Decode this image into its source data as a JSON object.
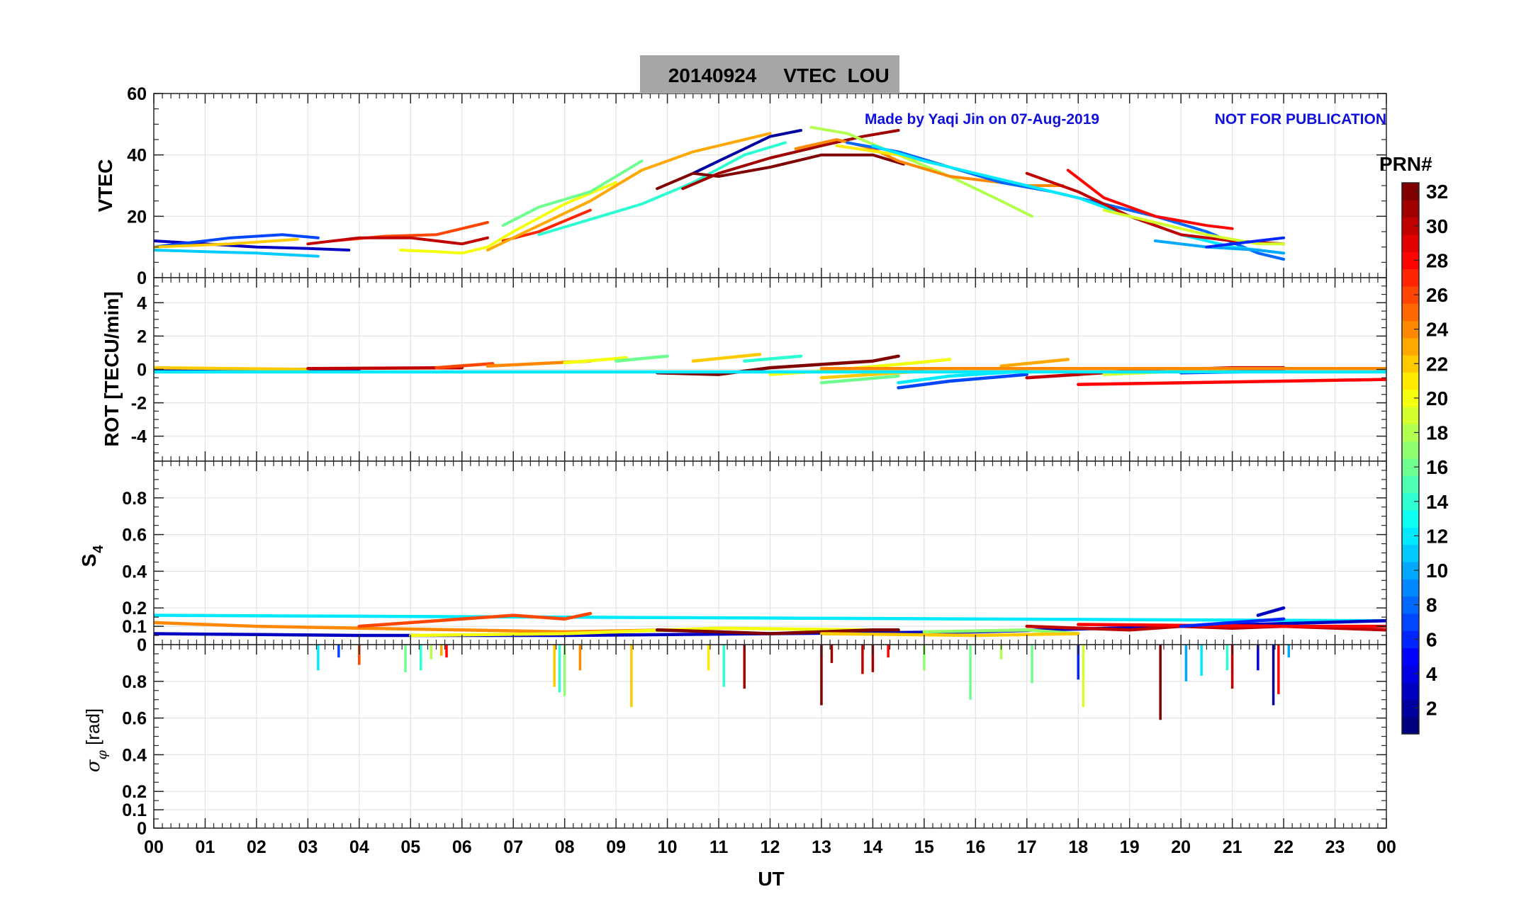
{
  "title": {
    "date": "20140924",
    "text": "VTEC  LOU",
    "bg": "#a6a6a6"
  },
  "credit": {
    "author": "Made by Yaqi Jin on 07-Aug-2019",
    "notice": "NOT FOR PUBLICATION",
    "color": "#1010dd"
  },
  "xaxis": {
    "label": "UT",
    "ticks": [
      "00",
      "01",
      "02",
      "03",
      "04",
      "05",
      "06",
      "07",
      "08",
      "09",
      "10",
      "11",
      "12",
      "13",
      "14",
      "15",
      "16",
      "17",
      "18",
      "19",
      "20",
      "21",
      "22",
      "23",
      "00"
    ],
    "range": [
      0,
      24
    ]
  },
  "colorbar": {
    "label": "PRN#",
    "ticks": [
      "2",
      "4",
      "6",
      "8",
      "10",
      "12",
      "14",
      "16",
      "18",
      "20",
      "22",
      "24",
      "26",
      "28",
      "30",
      "32"
    ],
    "range": [
      1,
      32
    ],
    "colormap": "jet"
  },
  "chart_data": [
    {
      "type": "line",
      "panel": "vtec",
      "ylabel": "VTEC",
      "ylim": [
        0,
        60
      ],
      "yticks": [
        0,
        20,
        40,
        60
      ],
      "ytick_labels": [
        "0",
        "20",
        "40",
        "60"
      ],
      "grid": true,
      "series": [
        {
          "prn": 3,
          "x": [
            0.0,
            1.0,
            2.0,
            3.0,
            3.8
          ],
          "y": [
            12,
            11,
            10,
            9.5,
            9
          ]
        },
        {
          "prn": 7,
          "x": [
            0.0,
            1.5,
            2.5,
            3.2
          ],
          "y": [
            10,
            13,
            14,
            13
          ]
        },
        {
          "prn": 11,
          "x": [
            0.0,
            1.0,
            2.0,
            3.2
          ],
          "y": [
            9,
            8.5,
            8,
            7
          ]
        },
        {
          "prn": 22,
          "x": [
            0.0,
            1.5,
            2.8
          ],
          "y": [
            10,
            11,
            12.5
          ]
        },
        {
          "prn": 26,
          "x": [
            3.5,
            4.5,
            5.5,
            6.5
          ],
          "y": [
            12,
            13.5,
            14,
            18
          ]
        },
        {
          "prn": 30,
          "x": [
            3.0,
            4.0,
            5.0,
            6.0,
            6.5
          ],
          "y": [
            11,
            13,
            13,
            11,
            13
          ]
        },
        {
          "prn": 20,
          "x": [
            4.8,
            5.5,
            6.0,
            6.5,
            7.0,
            8.0,
            9.0
          ],
          "y": [
            9,
            8.5,
            8,
            10,
            15,
            24,
            31
          ]
        },
        {
          "prn": 16,
          "x": [
            6.8,
            7.5,
            8.5,
            9.5
          ],
          "y": [
            17,
            23,
            28,
            38
          ]
        },
        {
          "prn": 27,
          "x": [
            6.8,
            7.5,
            8.5
          ],
          "y": [
            12,
            15,
            22
          ]
        },
        {
          "prn": 14,
          "x": [
            7.5,
            8.5,
            9.5,
            10.5,
            11.5,
            12.3
          ],
          "y": [
            14,
            19,
            24,
            31,
            40,
            44
          ]
        },
        {
          "prn": 23,
          "x": [
            6.5,
            7.5,
            8.5,
            9.5,
            10.5,
            11.5,
            12.0
          ],
          "y": [
            9,
            17,
            25,
            35,
            41,
            45,
            47
          ]
        },
        {
          "prn": 2,
          "x": [
            10.5,
            11.0,
            11.5,
            12.0,
            12.6
          ],
          "y": [
            34,
            38,
            42,
            46,
            48
          ]
        },
        {
          "prn": 32,
          "x": [
            9.8,
            10.5,
            11.0,
            12.0,
            13.0,
            14.0,
            14.6
          ],
          "y": [
            29,
            34,
            33,
            36,
            40,
            40,
            37
          ]
        },
        {
          "prn": 31,
          "x": [
            10.3,
            11.0,
            12.0,
            13.0,
            13.8,
            14.5
          ],
          "y": [
            29,
            34,
            39,
            43,
            46,
            48
          ]
        },
        {
          "prn": 18,
          "x": [
            12.8,
            13.5,
            14.5,
            15.5,
            16.5,
            17.1
          ],
          "y": [
            49,
            47,
            40,
            33,
            25,
            20
          ]
        },
        {
          "prn": 24,
          "x": [
            12.5,
            13.3,
            14.0,
            14.5,
            15.5,
            17.0,
            17.7
          ],
          "y": [
            42,
            45,
            42,
            38,
            33,
            30,
            30
          ]
        },
        {
          "prn": 8,
          "x": [
            13.5,
            14.5,
            15.5,
            16.5,
            17.5,
            18.5,
            19.5,
            20.5,
            21.5,
            22.0
          ],
          "y": [
            44,
            41,
            36,
            31,
            28,
            24,
            20,
            15,
            8,
            6
          ]
        },
        {
          "prn": 21,
          "x": [
            13.3,
            14.5,
            15.5
          ],
          "y": [
            43,
            40,
            36
          ]
        },
        {
          "prn": 12,
          "x": [
            14.0,
            15.0,
            16.0,
            17.0,
            18.0,
            19.0,
            20.0,
            21.0,
            22.0
          ],
          "y": [
            43,
            38,
            34,
            30,
            26,
            20,
            14,
            10,
            8
          ]
        },
        {
          "prn": 30,
          "x": [
            17.0,
            18.0,
            19.0,
            20.0,
            21.0,
            22.0
          ],
          "y": [
            34,
            28,
            20,
            14,
            12,
            11
          ]
        },
        {
          "prn": 28,
          "x": [
            17.8,
            18.5,
            19.5,
            20.5,
            21.0
          ],
          "y": [
            35,
            26,
            20,
            17,
            16
          ]
        },
        {
          "prn": 19,
          "x": [
            18.5,
            19.5,
            20.5,
            21.5,
            22.0
          ],
          "y": [
            22,
            18,
            14,
            11,
            11
          ]
        },
        {
          "prn": 10,
          "x": [
            19.5,
            20.5,
            21.5,
            22.0
          ],
          "y": [
            12,
            10,
            9,
            8
          ]
        },
        {
          "prn": 6,
          "x": [
            20.5,
            21.5,
            22.0
          ],
          "y": [
            10,
            12,
            13
          ]
        }
      ]
    },
    {
      "type": "line",
      "panel": "rot",
      "ylabel": "ROT [TECU/min]",
      "ylim": [
        -5.5,
        5.5
      ],
      "yticks": [
        -4,
        -2,
        0,
        2,
        4
      ],
      "ytick_labels": [
        "-4",
        "-2",
        "0",
        "2",
        "4"
      ],
      "grid": true,
      "series": [
        {
          "prn": 3,
          "x": [
            0,
            4
          ],
          "y": [
            0.0,
            0.0
          ]
        },
        {
          "prn": 22,
          "x": [
            0,
            3
          ],
          "y": [
            0.1,
            0.0
          ]
        },
        {
          "prn": 30,
          "x": [
            3,
            6
          ],
          "y": [
            0.05,
            0.1
          ]
        },
        {
          "prn": 26,
          "x": [
            5.5,
            6.6
          ],
          "y": [
            0.1,
            0.35
          ]
        },
        {
          "prn": 24,
          "x": [
            6.5,
            8.5
          ],
          "y": [
            0.2,
            0.5
          ]
        },
        {
          "prn": 20,
          "x": [
            8.0,
            9.2
          ],
          "y": [
            0.4,
            0.7
          ]
        },
        {
          "prn": 16,
          "x": [
            9.0,
            10.0
          ],
          "y": [
            0.5,
            0.8
          ]
        },
        {
          "prn": 22,
          "x": [
            10.5,
            11.8
          ],
          "y": [
            0.5,
            0.9
          ]
        },
        {
          "prn": 14,
          "x": [
            11.5,
            12.6
          ],
          "y": [
            0.5,
            0.8
          ]
        },
        {
          "prn": 32,
          "x": [
            9.8,
            11.0,
            12.0,
            13.0,
            14.0,
            14.5
          ],
          "y": [
            -0.2,
            -0.3,
            0.1,
            0.3,
            0.5,
            0.8
          ]
        },
        {
          "prn": 20,
          "x": [
            12.0,
            13.0,
            14.5,
            15.5
          ],
          "y": [
            -0.3,
            -0.1,
            0.3,
            0.6
          ]
        },
        {
          "prn": 22,
          "x": [
            13.0,
            14.0,
            15.0
          ],
          "y": [
            -0.5,
            -0.3,
            -0.1
          ]
        },
        {
          "prn": 16,
          "x": [
            13.0,
            14.5
          ],
          "y": [
            -0.8,
            -0.4
          ]
        },
        {
          "prn": 12,
          "x": [
            14.5,
            15.5,
            17.0
          ],
          "y": [
            -0.8,
            -0.4,
            -0.1
          ]
        },
        {
          "prn": 7,
          "x": [
            14.5,
            15.5,
            17.0
          ],
          "y": [
            -1.1,
            -0.7,
            -0.3
          ]
        },
        {
          "prn": 23,
          "x": [
            16.5,
            17.8
          ],
          "y": [
            0.2,
            0.6
          ]
        },
        {
          "prn": 30,
          "x": [
            17.0,
            18.0,
            19.0,
            20.0,
            21.0,
            22.0
          ],
          "y": [
            -0.5,
            -0.3,
            -0.1,
            0.0,
            0.1,
            0.1
          ]
        },
        {
          "prn": 28,
          "x": [
            18.0,
            22.0,
            24.0
          ],
          "y": [
            -0.9,
            -0.7,
            -0.6
          ]
        },
        {
          "prn": 19,
          "x": [
            18.5,
            20.0,
            22.0
          ],
          "y": [
            -0.3,
            -0.1,
            0.0
          ]
        },
        {
          "prn": 6,
          "x": [
            20.0,
            22.0
          ],
          "y": [
            -0.2,
            -0.1
          ]
        },
        {
          "prn": 12,
          "x": [
            0,
            24
          ],
          "y": [
            -0.15,
            -0.15
          ]
        },
        {
          "prn": 24,
          "x": [
            13,
            24
          ],
          "y": [
            0.05,
            0.05
          ]
        }
      ]
    },
    {
      "type": "line",
      "panel": "s4",
      "ylabel": "S4",
      "ylim": [
        0,
        1.0
      ],
      "yticks": [
        0,
        0.1,
        0.2,
        0.4,
        0.6,
        0.8
      ],
      "ytick_labels": [
        "0",
        "0.1",
        "0.2",
        "0.4",
        "0.6",
        "0.8"
      ],
      "grid": true,
      "series": [
        {
          "prn": 12,
          "x": [
            0,
            24
          ],
          "y": [
            0.16,
            0.13
          ]
        },
        {
          "prn": 3,
          "x": [
            0,
            4,
            8,
            12,
            16,
            20,
            24
          ],
          "y": [
            0.06,
            0.05,
            0.05,
            0.06,
            0.07,
            0.1,
            0.13
          ]
        },
        {
          "prn": 24,
          "x": [
            0,
            2,
            4,
            6,
            8,
            10
          ],
          "y": [
            0.12,
            0.1,
            0.09,
            0.08,
            0.07,
            0.08
          ]
        },
        {
          "prn": 20,
          "x": [
            5,
            8,
            11,
            14
          ],
          "y": [
            0.05,
            0.06,
            0.09,
            0.08
          ]
        },
        {
          "prn": 26,
          "x": [
            4,
            6,
            7,
            8,
            8.5
          ],
          "y": [
            0.1,
            0.14,
            0.16,
            0.14,
            0.17
          ]
        },
        {
          "prn": 32,
          "x": [
            9.8,
            11,
            12,
            13,
            14,
            14.5
          ],
          "y": [
            0.08,
            0.07,
            0.06,
            0.07,
            0.08,
            0.08
          ]
        },
        {
          "prn": 17,
          "x": [
            15,
            17,
            18
          ],
          "y": [
            0.07,
            0.08,
            0.06
          ]
        },
        {
          "prn": 22,
          "x": [
            13,
            16,
            18
          ],
          "y": [
            0.06,
            0.05,
            0.06
          ]
        },
        {
          "prn": 30,
          "x": [
            17,
            18,
            19,
            20,
            21,
            22,
            24
          ],
          "y": [
            0.1,
            0.09,
            0.08,
            0.1,
            0.09,
            0.1,
            0.08
          ]
        },
        {
          "prn": 28,
          "x": [
            18,
            22,
            24
          ],
          "y": [
            0.11,
            0.1,
            0.1
          ]
        },
        {
          "prn": 6,
          "x": [
            20,
            22
          ],
          "y": [
            0.1,
            0.14
          ]
        },
        {
          "prn": 3,
          "x": [
            21.5,
            22
          ],
          "y": [
            0.16,
            0.2
          ]
        }
      ]
    },
    {
      "type": "line",
      "panel": "sigma_phi",
      "ylabel": "σφ [rad]",
      "ylim": [
        0,
        1.0
      ],
      "yticks": [
        0,
        0.1,
        0.2,
        0.4,
        0.6,
        0.8
      ],
      "ytick_labels": [
        "0",
        "0.1",
        "0.2",
        "0.4",
        "0.6",
        "0.8"
      ],
      "grid": true,
      "spikes": [
        {
          "prn": 12,
          "x": 3.2,
          "y": 0.86
        },
        {
          "prn": 7,
          "x": 3.6,
          "y": 0.93
        },
        {
          "prn": 26,
          "x": 4.0,
          "y": 0.89
        },
        {
          "prn": 16,
          "x": 4.9,
          "y": 0.85
        },
        {
          "prn": 14,
          "x": 5.2,
          "y": 0.86
        },
        {
          "prn": 18,
          "x": 5.4,
          "y": 0.92
        },
        {
          "prn": 23,
          "x": 5.6,
          "y": 0.94
        },
        {
          "prn": 28,
          "x": 5.7,
          "y": 0.93
        },
        {
          "prn": 22,
          "x": 7.8,
          "y": 0.77
        },
        {
          "prn": 17,
          "x": 8.0,
          "y": 0.72
        },
        {
          "prn": 14,
          "x": 7.9,
          "y": 0.74
        },
        {
          "prn": 24,
          "x": 8.3,
          "y": 0.86
        },
        {
          "prn": 22,
          "x": 9.3,
          "y": 0.66
        },
        {
          "prn": 21,
          "x": 10.8,
          "y": 0.86
        },
        {
          "prn": 14,
          "x": 11.1,
          "y": 0.77
        },
        {
          "prn": 31,
          "x": 11.5,
          "y": 0.76
        },
        {
          "prn": 32,
          "x": 13.0,
          "y": 0.67
        },
        {
          "prn": 31,
          "x": 13.2,
          "y": 0.9
        },
        {
          "prn": 30,
          "x": 13.8,
          "y": 0.84
        },
        {
          "prn": 31,
          "x": 14.0,
          "y": 0.85
        },
        {
          "prn": 28,
          "x": 14.3,
          "y": 0.93
        },
        {
          "prn": 17,
          "x": 15.0,
          "y": 0.86
        },
        {
          "prn": 16,
          "x": 15.9,
          "y": 0.7
        },
        {
          "prn": 18,
          "x": 16.5,
          "y": 0.92
        },
        {
          "prn": 16,
          "x": 17.1,
          "y": 0.79
        },
        {
          "prn": 6,
          "x": 18.0,
          "y": 0.81
        },
        {
          "prn": 19,
          "x": 18.1,
          "y": 0.66
        },
        {
          "prn": 32,
          "x": 19.6,
          "y": 0.59
        },
        {
          "prn": 10,
          "x": 20.1,
          "y": 0.8
        },
        {
          "prn": 12,
          "x": 20.4,
          "y": 0.83
        },
        {
          "prn": 14,
          "x": 20.9,
          "y": 0.86
        },
        {
          "prn": 30,
          "x": 21.0,
          "y": 0.76
        },
        {
          "prn": 4,
          "x": 21.5,
          "y": 0.86
        },
        {
          "prn": 2,
          "x": 21.8,
          "y": 0.67
        },
        {
          "prn": 28,
          "x": 21.9,
          "y": 0.73
        },
        {
          "prn": 10,
          "x": 22.1,
          "y": 0.93
        }
      ]
    }
  ]
}
